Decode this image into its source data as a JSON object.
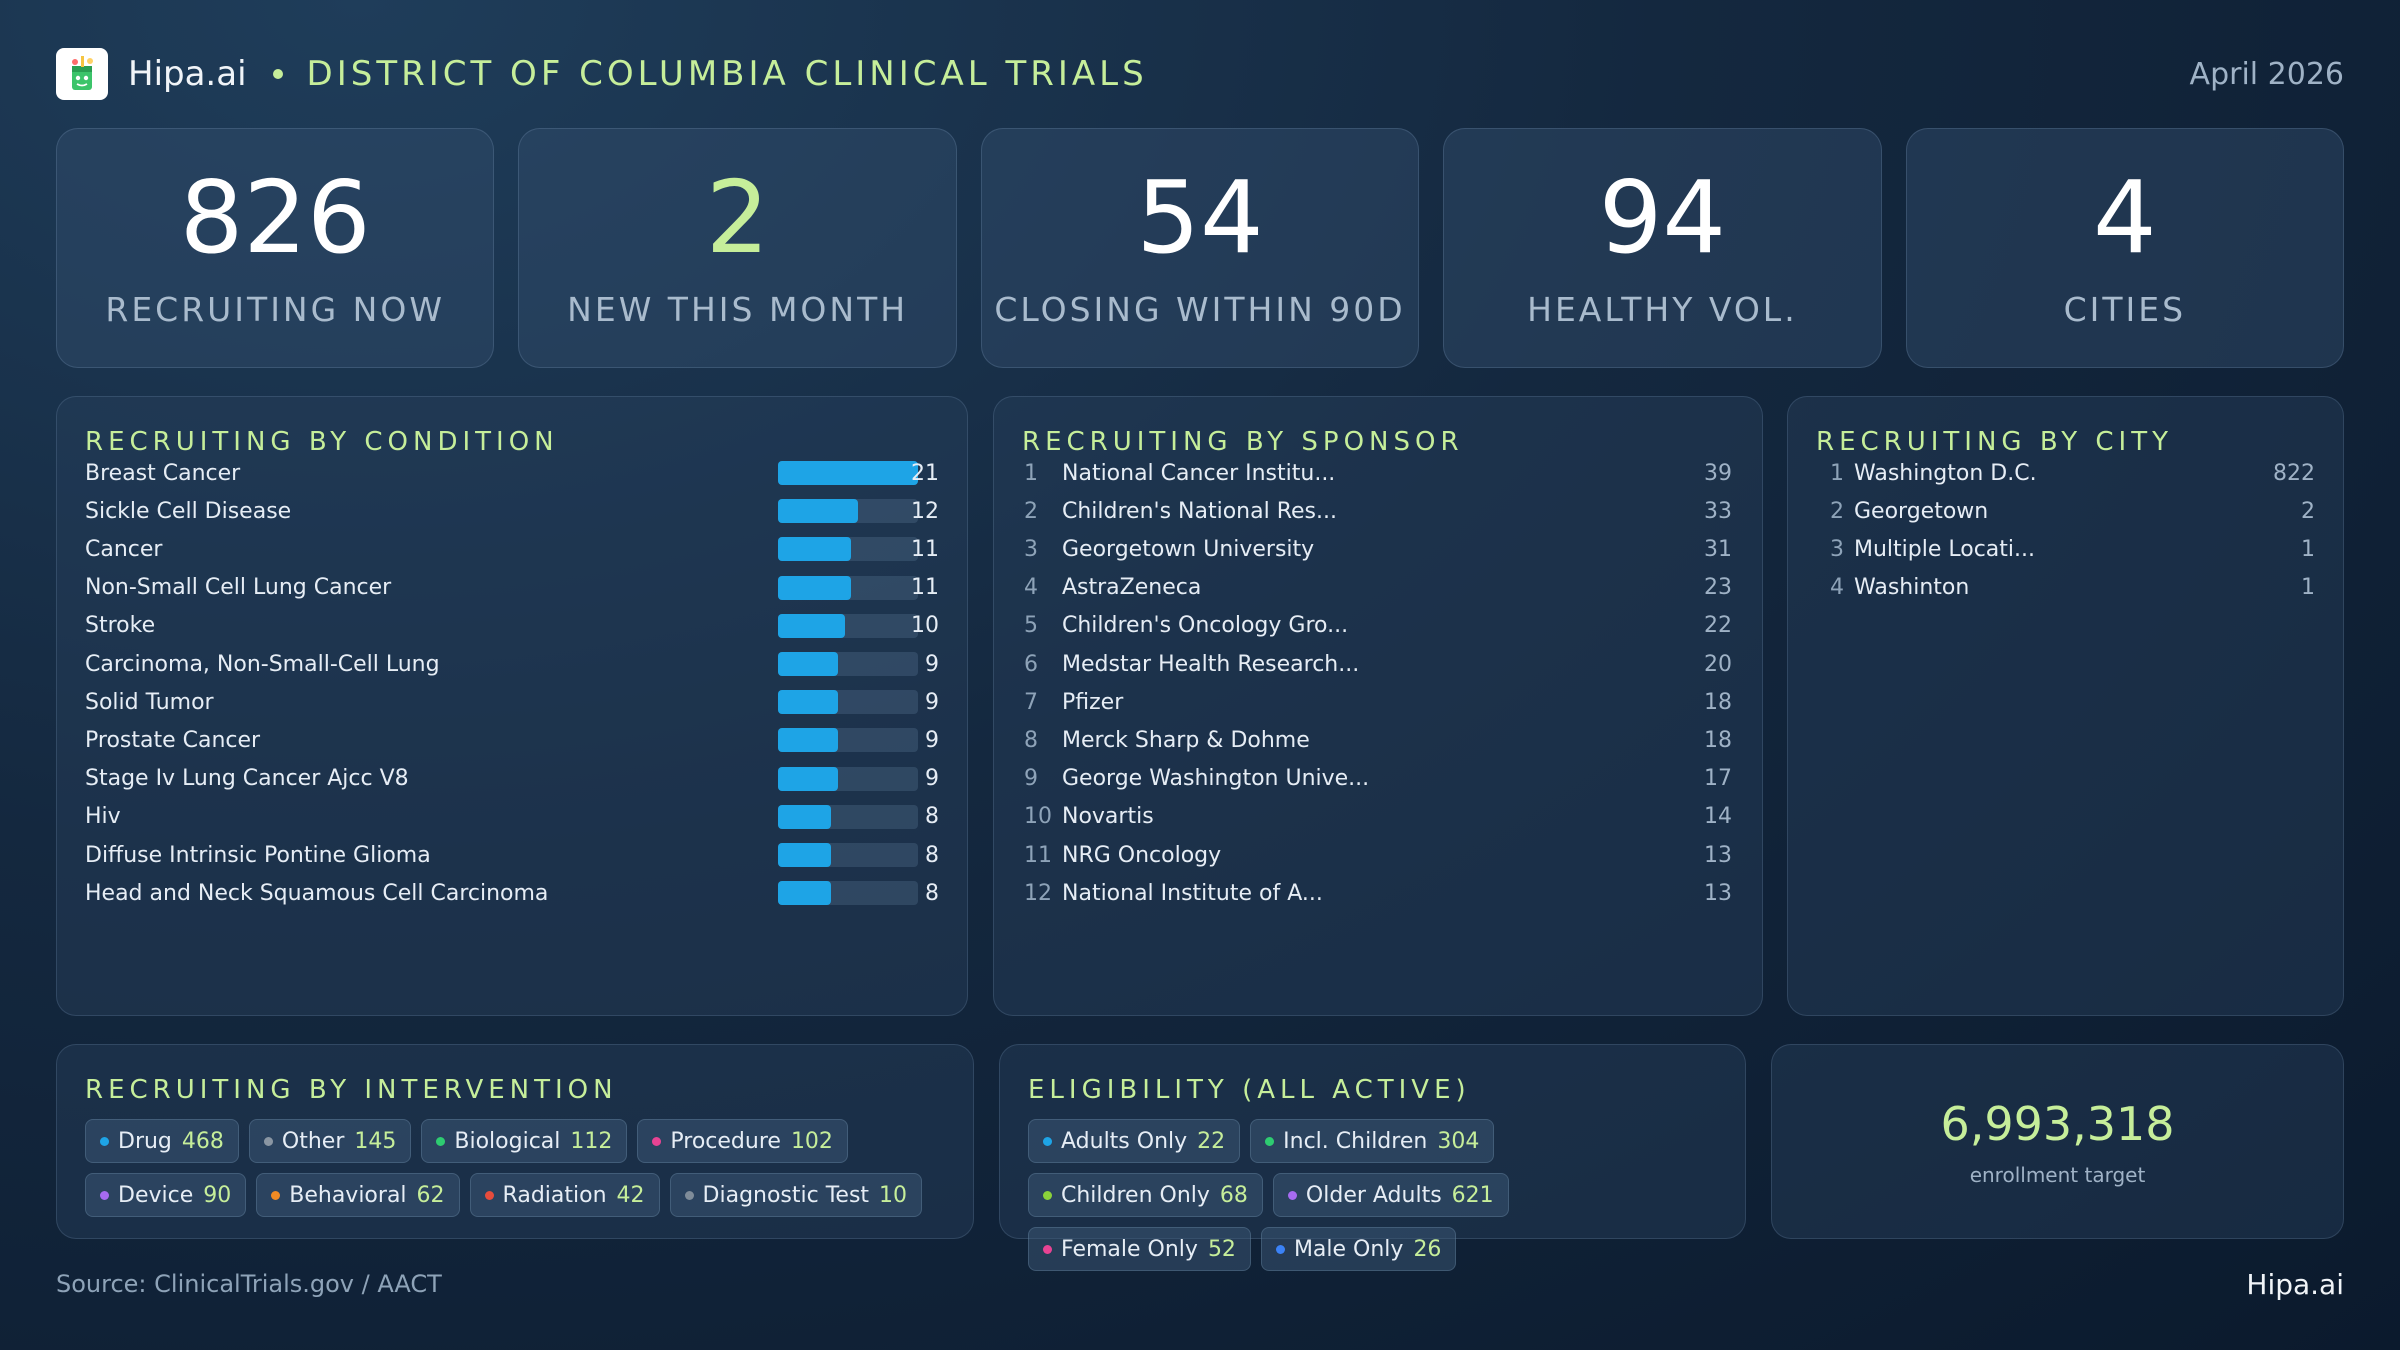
{
  "header": {
    "brand": "Hipa.ai",
    "title": "DISTRICT OF COLUMBIA CLINICAL TRIALS",
    "date": "April 2026",
    "logo_icon": "cup-logo-icon"
  },
  "kpis": [
    {
      "value": "826",
      "label": "RECRUITING NOW",
      "accent": false
    },
    {
      "value": "2",
      "label": "NEW THIS MONTH",
      "accent": true
    },
    {
      "value": "54",
      "label": "CLOSING WITHIN 90D",
      "accent": false
    },
    {
      "value": "94",
      "label": "HEALTHY VOL.",
      "accent": false
    },
    {
      "value": "4",
      "label": "CITIES",
      "accent": false
    }
  ],
  "condition": {
    "title": "RECRUITING BY CONDITION",
    "items": [
      {
        "name": "Breast Cancer",
        "value": 21
      },
      {
        "name": "Sickle Cell Disease",
        "value": 12
      },
      {
        "name": "Cancer",
        "value": 11
      },
      {
        "name": "Non-Small Cell Lung Cancer",
        "value": 11
      },
      {
        "name": "Stroke",
        "value": 10
      },
      {
        "name": "Carcinoma, Non-Small-Cell Lung",
        "value": 9
      },
      {
        "name": "Solid Tumor",
        "value": 9
      },
      {
        "name": "Prostate Cancer",
        "value": 9
      },
      {
        "name": "Stage Iv Lung Cancer Ajcc V8",
        "value": 9
      },
      {
        "name": "Hiv",
        "value": 8
      },
      {
        "name": "Diffuse Intrinsic Pontine Glioma",
        "value": 8
      },
      {
        "name": "Head and Neck Squamous Cell Carcinoma",
        "value": 8
      }
    ]
  },
  "sponsor": {
    "title": "RECRUITING BY SPONSOR",
    "items": [
      {
        "rank": "1",
        "name": "National Cancer Institu...",
        "value": "39"
      },
      {
        "rank": "2",
        "name": "Children's National Res...",
        "value": "33"
      },
      {
        "rank": "3",
        "name": "Georgetown University",
        "value": "31"
      },
      {
        "rank": "4",
        "name": "AstraZeneca",
        "value": "23"
      },
      {
        "rank": "5",
        "name": "Children's Oncology Gro...",
        "value": "22"
      },
      {
        "rank": "6",
        "name": "Medstar Health Research...",
        "value": "20"
      },
      {
        "rank": "7",
        "name": "Pfizer",
        "value": "18"
      },
      {
        "rank": "8",
        "name": "Merck Sharp & Dohme",
        "value": "18"
      },
      {
        "rank": "9",
        "name": "George Washington Unive...",
        "value": "17"
      },
      {
        "rank": "10",
        "name": "Novartis",
        "value": "14"
      },
      {
        "rank": "11",
        "name": "NRG Oncology",
        "value": "13"
      },
      {
        "rank": "12",
        "name": "National Institute of A...",
        "value": "13"
      }
    ]
  },
  "city": {
    "title": "RECRUITING BY CITY",
    "items": [
      {
        "rank": "1",
        "name": "Washington D.C.",
        "value": "822"
      },
      {
        "rank": "2",
        "name": "Georgetown",
        "value": "2"
      },
      {
        "rank": "3",
        "name": "Multiple Locati...",
        "value": "1"
      },
      {
        "rank": "4",
        "name": "Washinton",
        "value": "1"
      }
    ]
  },
  "intervention": {
    "title": "RECRUITING BY INTERVENTION",
    "chips": [
      {
        "label": "Drug",
        "count": "468",
        "color": "#1ea4e6"
      },
      {
        "label": "Other",
        "count": "145",
        "color": "#8a96a3"
      },
      {
        "label": "Biological",
        "count": "112",
        "color": "#2ecc71"
      },
      {
        "label": "Procedure",
        "count": "102",
        "color": "#e84393"
      },
      {
        "label": "Device",
        "count": "90",
        "color": "#a66bf0"
      },
      {
        "label": "Behavioral",
        "count": "62",
        "color": "#f08a24"
      },
      {
        "label": "Radiation",
        "count": "42",
        "color": "#e74c3c"
      },
      {
        "label": "Diagnostic Test",
        "count": "10",
        "color": "#7f8c99"
      }
    ]
  },
  "eligibility": {
    "title": "ELIGIBILITY (ALL ACTIVE)",
    "chips": [
      {
        "label": "Adults Only",
        "count": "22",
        "color": "#1ea4e6"
      },
      {
        "label": "Incl. Children",
        "count": "304",
        "color": "#2ecc71"
      },
      {
        "label": "Children Only",
        "count": "68",
        "color": "#8bd13a"
      },
      {
        "label": "Older Adults",
        "count": "621",
        "color": "#a66bf0"
      },
      {
        "label": "Female Only",
        "count": "52",
        "color": "#e84393"
      },
      {
        "label": "Male Only",
        "count": "26",
        "color": "#3b82f6"
      }
    ]
  },
  "enrollment": {
    "value": "6,993,318",
    "label": "enrollment target"
  },
  "footer": {
    "source": "Source: ClinicalTrials.gov / AACT",
    "brand": "Hipa.ai"
  }
}
